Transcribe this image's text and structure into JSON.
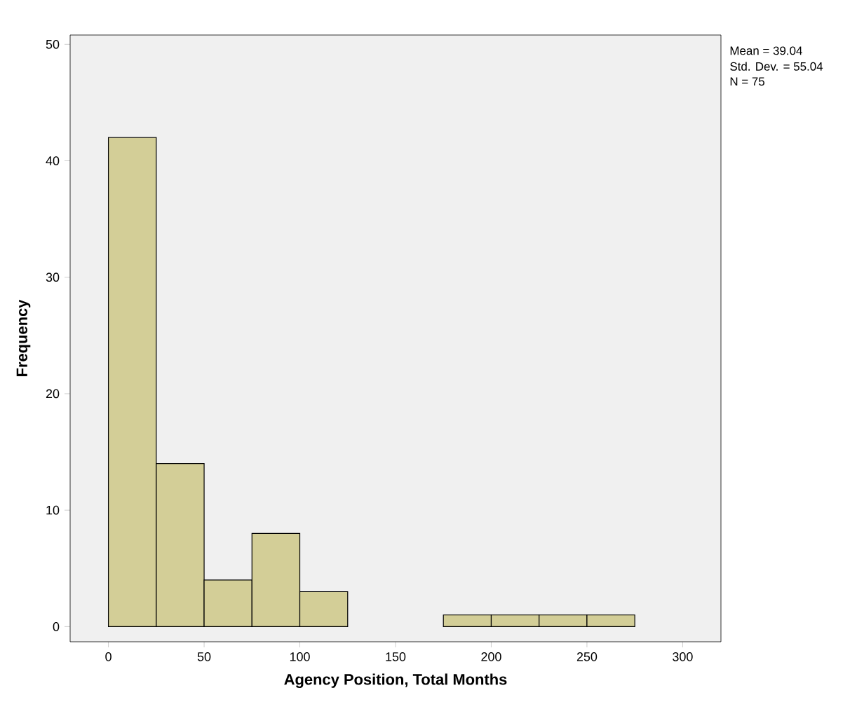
{
  "chart_data": {
    "type": "histogram",
    "xlabel": "Agency Position, Total Months",
    "ylabel": "Frequency",
    "bins": [
      0,
      25,
      50,
      75,
      100,
      125,
      150,
      175,
      200,
      225,
      250,
      275
    ],
    "values": [
      42,
      14,
      4,
      8,
      3,
      0,
      0,
      1,
      1,
      1,
      1
    ],
    "color": "#d3ce97",
    "xlim": [
      -20,
      320
    ],
    "xticks": [
      0,
      50,
      100,
      150,
      200,
      250,
      300
    ],
    "ylim": [
      -1.3,
      50.8
    ],
    "yticks": [
      0,
      10,
      20,
      30,
      40,
      50
    ],
    "grid": false,
    "annotations": [
      "Mean = 39.04",
      "Std. Dev. = 55.04",
      "N = 75"
    ]
  }
}
